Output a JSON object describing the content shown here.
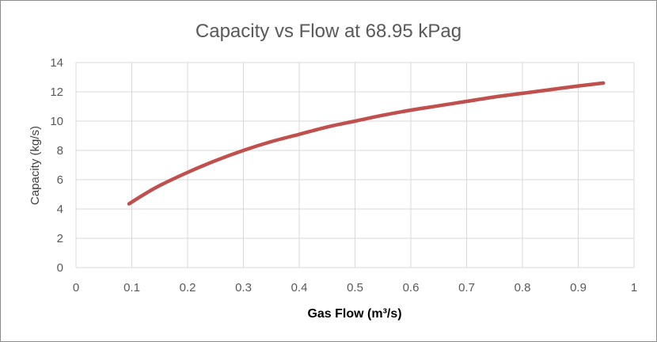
{
  "chart_data": {
    "type": "line",
    "title": "Capacity vs Flow at 68.95 kPag",
    "xlabel": "Gas Flow (m³/s)",
    "ylabel": "Capacity (kg/s)",
    "xlim": [
      0,
      1
    ],
    "ylim": [
      0,
      14
    ],
    "x_ticks": [
      "0",
      "0.1",
      "0.2",
      "0.3",
      "0.4",
      "0.5",
      "0.6",
      "0.7",
      "0.8",
      "0.9",
      "1"
    ],
    "y_ticks": [
      "0",
      "2",
      "4",
      "6",
      "8",
      "10",
      "12",
      "14"
    ],
    "grid": true,
    "legend": "none",
    "series": [
      {
        "color": "#c0504d",
        "x": [
          0.095,
          0.12,
          0.15,
          0.2,
          0.25,
          0.3,
          0.35,
          0.4,
          0.45,
          0.5,
          0.55,
          0.6,
          0.65,
          0.7,
          0.75,
          0.8,
          0.85,
          0.9,
          0.945
        ],
        "y": [
          4.35,
          4.95,
          5.6,
          6.5,
          7.3,
          8.0,
          8.6,
          9.1,
          9.6,
          10.0,
          10.4,
          10.75,
          11.05,
          11.35,
          11.65,
          11.9,
          12.15,
          12.4,
          12.6
        ]
      }
    ]
  }
}
